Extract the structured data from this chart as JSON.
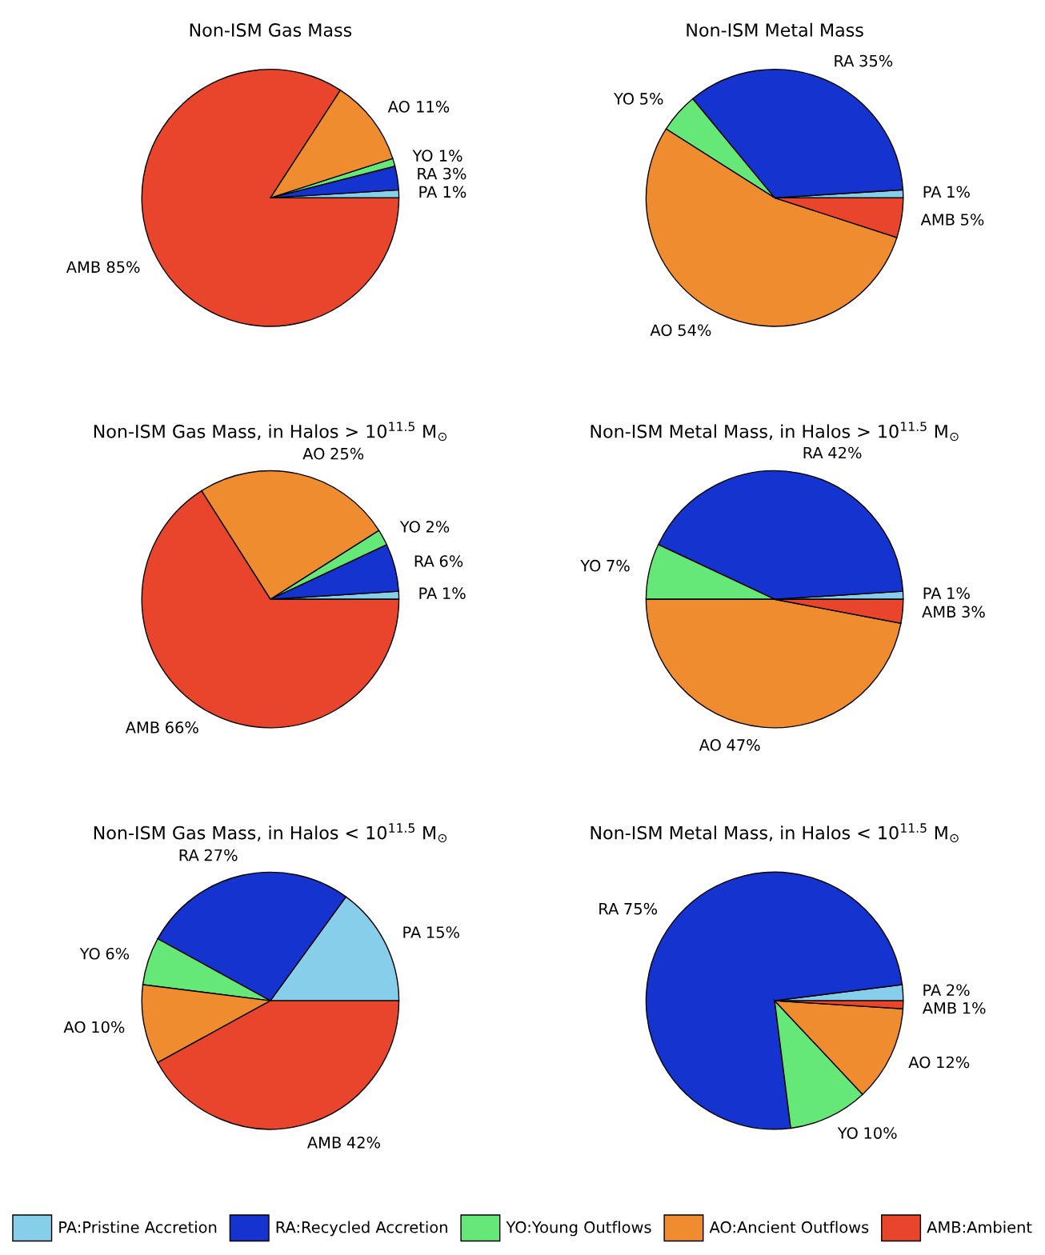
{
  "chart_data": [
    {
      "type": "pie",
      "title": "Non-ISM Gas Mass",
      "categories": [
        "PA:Pristine Accretion",
        "RA:Recycled Accretion",
        "YO:Young Outflows",
        "AO:Ancient Outflows",
        "AMB:Ambient"
      ],
      "values": [
        1,
        3,
        1,
        11,
        85
      ],
      "value_labels": [
        "PA 1%",
        "RA 3%",
        "YO 1%",
        "AO 11%",
        "AMB 85%"
      ],
      "colors": [
        "#87ceeb",
        "#1533cf",
        "#66e878",
        "#f08c30",
        "#e8452c"
      ],
      "legend": "bottom"
    },
    {
      "type": "pie",
      "title": "Non-ISM Metal Mass",
      "categories": [
        "PA",
        "RA",
        "YO",
        "AO",
        "AMB"
      ],
      "values": [
        1,
        35,
        5,
        54,
        5
      ],
      "value_labels": [
        "1%",
        "35%",
        "5%",
        "54%",
        "5%"
      ],
      "colors": [
        "#87ceeb",
        "#1533cf",
        "#66e878",
        "#f08c30",
        "#e8452c"
      ]
    },
    {
      "type": "pie",
      "title": "Non-ISM Gas Mass, in Halos > 10$^{11.5}$ M$_{⊙}$",
      "categories": [
        "PA",
        "RA",
        "YO",
        "AO",
        "AMB"
      ],
      "values": [
        1,
        6,
        2,
        25,
        66
      ],
      "value_labels": [
        "1%",
        "6%",
        "2%",
        "25%",
        "66%"
      ],
      "colors": [
        "#87ceeb",
        "#1533cf",
        "#66e878",
        "#f08c30",
        "#e8452c"
      ]
    },
    {
      "type": "pie",
      "title": "Non-ISM Metal Mass, in Halos > 10$^{11.5}$ M$_{⊙}$",
      "categories": [
        "PA",
        "RA",
        "YO",
        "AO",
        "AMB"
      ],
      "values": [
        1,
        42,
        7,
        47,
        3
      ],
      "value_labels": [
        "1%",
        "42%",
        "7%",
        "47%",
        "3%"
      ],
      "colors": [
        "#87ceeb",
        "#1533cf",
        "#66e878",
        "#f08c30",
        "#e8452c"
      ]
    },
    {
      "type": "pie",
      "title": "Non-ISM Gas Mass, in Halos < 10$^{11.5}$ M$_{⊙}$",
      "categories": [
        "PA",
        "RA",
        "YO",
        "AO",
        "AMB"
      ],
      "values": [
        15,
        27,
        6,
        10,
        42
      ],
      "value_labels": [
        "15%",
        "27%",
        "6%",
        "10%",
        "42%"
      ],
      "colors": [
        "#87ceeb",
        "#1533cf",
        "#66e878",
        "#f08c30",
        "#e8452c"
      ]
    },
    {
      "type": "pie",
      "title": "Non-ISM Metal Mass, in Halos < 10$^{11.5}$ M$_{⊙}$",
      "categories": [
        "PA",
        "RA",
        "YO",
        "AO",
        "AMB"
      ],
      "values": [
        2,
        75,
        10,
        12,
        1
      ],
      "value_labels": [
        "2%",
        "75%",
        "10%",
        "12%",
        "1%"
      ],
      "colors": [
        "#87ceeb",
        "#1533cf",
        "#66e878",
        "#f08c30",
        "#e8452c"
      ]
    }
  ]
}
